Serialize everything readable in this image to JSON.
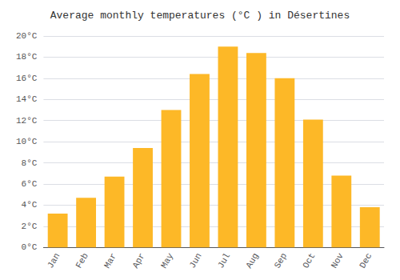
{
  "chart_data": {
    "type": "bar",
    "title": "Average monthly temperatures (°C ) in Désertines",
    "categories": [
      "Jan",
      "Feb",
      "Mar",
      "Apr",
      "May",
      "Jun",
      "Jul",
      "Aug",
      "Sep",
      "Oct",
      "Nov",
      "Dec"
    ],
    "values": [
      3.2,
      4.7,
      6.7,
      9.4,
      13.0,
      16.4,
      19.0,
      18.4,
      16.0,
      12.1,
      6.8,
      3.8
    ],
    "color": "#FDB827",
    "ylim": [
      0,
      20
    ],
    "yticks": [
      {
        "value": 0,
        "label": "0°C"
      },
      {
        "value": 2,
        "label": "2°C"
      },
      {
        "value": 4,
        "label": "4°C"
      },
      {
        "value": 6,
        "label": "6°C"
      },
      {
        "value": 8,
        "label": "8°C"
      },
      {
        "value": 10,
        "label": "10°C"
      },
      {
        "value": 12,
        "label": "12°C"
      },
      {
        "value": 14,
        "label": "14°C"
      },
      {
        "value": 16,
        "label": "16°C"
      },
      {
        "value": 18,
        "label": "18°C"
      },
      {
        "value": 20,
        "label": "20°C"
      }
    ],
    "grid": true
  }
}
